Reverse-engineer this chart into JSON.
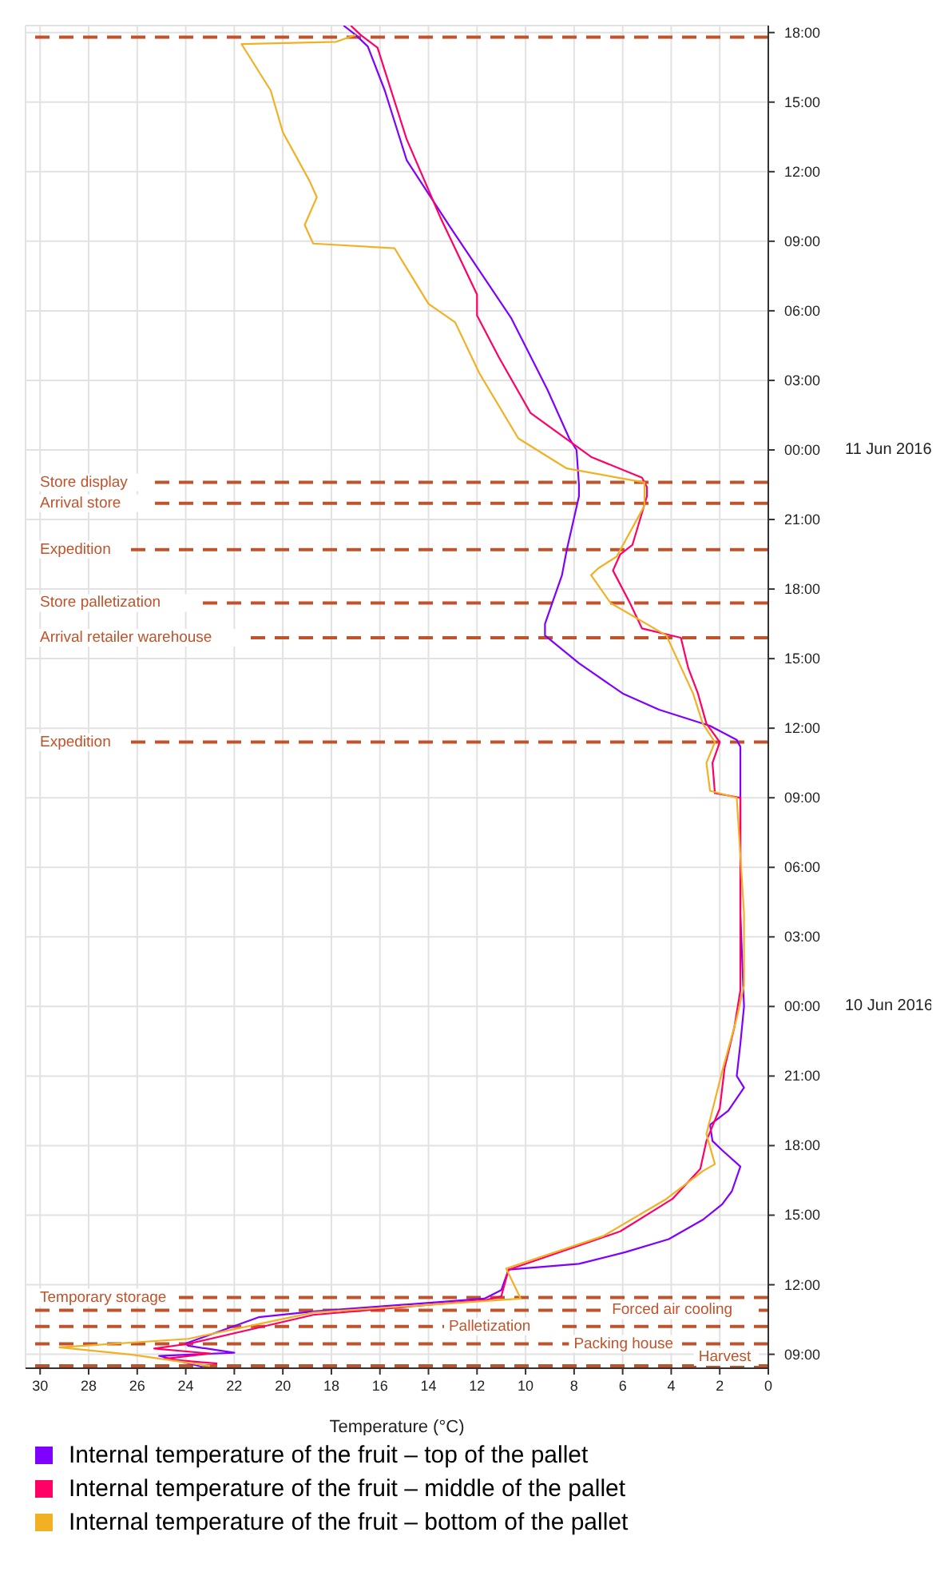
{
  "chart_data": {
    "type": "line",
    "orientation": "horizontal",
    "xlabel": "Temperature (°C)",
    "xlim": [
      30.6,
      0
    ],
    "xticks": [
      0,
      2,
      4,
      6,
      8,
      10,
      12,
      14,
      16,
      18,
      20,
      22,
      24,
      26,
      28,
      30
    ],
    "ylim": [
      "2016-06-09T08:24",
      "2016-06-11T18:18"
    ],
    "yticks": [
      {
        "value": "2016-06-09T09:00",
        "label": "09:00"
      },
      {
        "value": "2016-06-09T12:00",
        "label": "12:00"
      },
      {
        "value": "2016-06-09T15:00",
        "label": "15:00"
      },
      {
        "value": "2016-06-09T18:00",
        "label": "18:00"
      },
      {
        "value": "2016-06-09T21:00",
        "label": "21:00"
      },
      {
        "value": "2016-06-10T00:00",
        "label": "00:00"
      },
      {
        "value": "2016-06-10T03:00",
        "label": "03:00"
      },
      {
        "value": "2016-06-10T06:00",
        "label": "06:00"
      },
      {
        "value": "2016-06-10T09:00",
        "label": "09:00"
      },
      {
        "value": "2016-06-10T12:00",
        "label": "12:00"
      },
      {
        "value": "2016-06-10T15:00",
        "label": "15:00"
      },
      {
        "value": "2016-06-10T18:00",
        "label": "18:00"
      },
      {
        "value": "2016-06-10T21:00",
        "label": "21:00"
      },
      {
        "value": "2016-06-11T00:00",
        "label": "00:00"
      },
      {
        "value": "2016-06-11T03:00",
        "label": "03:00"
      },
      {
        "value": "2016-06-11T06:00",
        "label": "06:00"
      },
      {
        "value": "2016-06-11T09:00",
        "label": "09:00"
      },
      {
        "value": "2016-06-11T12:00",
        "label": "12:00"
      },
      {
        "value": "2016-06-11T15:00",
        "label": "15:00"
      },
      {
        "value": "2016-06-11T18:00",
        "label": "18:00"
      }
    ],
    "grid": true,
    "legend": "bottom",
    "series": [
      {
        "name": "Internal temperature of the fruit – top of the pallet",
        "color": "#8000ff",
        "x": [
          "2016-06-09T08:27",
          "2016-06-09T08:56",
          "2016-06-09T09:04",
          "2016-06-09T09:22",
          "2016-06-09T09:28",
          "2016-06-09T10:36",
          "2016-06-09T10:51",
          "2016-06-09T11:24",
          "2016-06-09T11:46",
          "2016-06-09T12:39",
          "2016-06-09T12:54",
          "2016-06-09T13:24",
          "2016-06-09T13:58",
          "2016-06-09T14:48",
          "2016-06-09T15:28",
          "2016-06-09T16:02",
          "2016-06-09T17:06",
          "2016-06-09T17:48",
          "2016-06-09T18:12",
          "2016-06-09T18:54",
          "2016-06-09T19:30",
          "2016-06-09T20:30",
          "2016-06-09T21:00",
          "2016-06-09T22:24",
          "2016-06-10T00:00",
          "2016-06-10T04:00",
          "2016-06-10T09:30",
          "2016-06-10T11:12",
          "2016-06-10T11:30",
          "2016-06-10T12:06",
          "2016-06-10T12:48",
          "2016-06-10T13:30",
          "2016-06-10T14:48",
          "2016-06-10T16:00",
          "2016-06-10T16:30",
          "2016-06-10T18:36",
          "2016-06-10T19:42",
          "2016-06-10T22:00",
          "2016-06-10T22:30",
          "2016-06-11T00:00",
          "2016-06-11T00:30",
          "2016-06-11T02:36",
          "2016-06-11T05:42",
          "2016-06-11T09:36",
          "2016-06-11T12:30",
          "2016-06-11T15:30",
          "2016-06-11T17:24",
          "2016-06-11T17:54",
          "2016-06-11T18:18"
        ],
        "values": [
          23.3,
          25.1,
          22.0,
          23.9,
          24.0,
          21.0,
          18.7,
          11.7,
          11.0,
          10.7,
          7.8,
          5.9,
          4.1,
          2.7,
          1.9,
          1.5,
          1.15,
          1.9,
          2.3,
          2.4,
          1.65,
          1.0,
          1.3,
          1.15,
          1.0,
          1.15,
          1.15,
          1.15,
          1.3,
          2.4,
          4.5,
          6.0,
          7.8,
          9.2,
          9.2,
          8.5,
          8.3,
          7.8,
          7.8,
          7.9,
          8.2,
          9.1,
          10.6,
          13.1,
          14.9,
          15.8,
          16.5,
          17.0,
          17.5
        ]
      },
      {
        "name": "Internal temperature of the fruit – middle of the pallet",
        "color": "#ff0066",
        "x": [
          "2016-06-09T08:36",
          "2016-06-09T08:48",
          "2016-06-09T09:02",
          "2016-06-09T09:15",
          "2016-06-09T09:27",
          "2016-06-09T10:42",
          "2016-06-09T11:21",
          "2016-06-09T11:30",
          "2016-06-09T12:39",
          "2016-06-09T14:18",
          "2016-06-09T15:42",
          "2016-06-09T17:00",
          "2016-06-09T18:12",
          "2016-06-09T19:36",
          "2016-06-09T21:21",
          "2016-06-09T23:06",
          "2016-06-10T00:42",
          "2016-06-10T04:00",
          "2016-06-10T09:00",
          "2016-06-10T09:12",
          "2016-06-10T10:30",
          "2016-06-10T11:24",
          "2016-06-10T12:12",
          "2016-06-10T13:30",
          "2016-06-10T14:36",
          "2016-06-10T15:54",
          "2016-06-10T16:18",
          "2016-06-10T17:24",
          "2016-06-10T18:48",
          "2016-06-10T19:30",
          "2016-06-10T19:54",
          "2016-06-10T22:00",
          "2016-06-10T22:24",
          "2016-06-10T22:48",
          "2016-06-10T23:42",
          "2016-06-11T01:36",
          "2016-06-11T04:00",
          "2016-06-11T05:48",
          "2016-06-11T06:42",
          "2016-06-11T10:00",
          "2016-06-11T13:24",
          "2016-06-11T17:21",
          "2016-06-11T17:54",
          "2016-06-11T18:18"
        ],
        "values": [
          22.7,
          24.9,
          23.0,
          25.3,
          23.9,
          18.75,
          11.6,
          11.0,
          10.7,
          6.1,
          3.95,
          2.8,
          2.55,
          2.0,
          1.8,
          1.4,
          1.15,
          1.15,
          1.15,
          2.2,
          2.3,
          2.0,
          2.55,
          2.9,
          3.3,
          3.6,
          5.2,
          5.7,
          6.4,
          6.1,
          5.6,
          5.0,
          5.0,
          5.2,
          7.3,
          9.8,
          11.1,
          12.0,
          12.0,
          13.5,
          14.9,
          16.1,
          16.8,
          17.2
        ]
      },
      {
        "name": "Internal temperature of the fruit – bottom of the pallet",
        "color": "#f2b124",
        "x": [
          "2016-06-09T08:30",
          "2016-06-09T08:59",
          "2016-06-09T09:18",
          "2016-06-09T09:40",
          "2016-06-09T10:48",
          "2016-06-09T11:24",
          "2016-06-09T12:42",
          "2016-06-09T14:06",
          "2016-06-09T15:42",
          "2016-06-09T16:54",
          "2016-06-09T17:12",
          "2016-06-09T18:30",
          "2016-06-09T21:12",
          "2016-06-09T23:30",
          "2016-06-10T00:54",
          "2016-06-10T04:00",
          "2016-06-10T09:00",
          "2016-06-10T09:18",
          "2016-06-10T10:30",
          "2016-06-10T11:24",
          "2016-06-10T12:12",
          "2016-06-10T13:30",
          "2016-06-10T16:00",
          "2016-06-10T17:24",
          "2016-06-10T18:36",
          "2016-06-10T18:54",
          "2016-06-10T19:24",
          "2016-06-10T21:36",
          "2016-06-10T22:36",
          "2016-06-10T23:12",
          "2016-06-11T00:30",
          "2016-06-11T03:18",
          "2016-06-11T05:30",
          "2016-06-11T06:18",
          "2016-06-11T08:42",
          "2016-06-11T08:54",
          "2016-06-11T09:42",
          "2016-06-11T10:54",
          "2016-06-11T11:36",
          "2016-06-11T13:42",
          "2016-06-11T15:30",
          "2016-06-11T17:30",
          "2016-06-11T17:36",
          "2016-06-11T17:54"
        ],
        "values": [
          23.0,
          26.2,
          29.2,
          23.9,
          18.75,
          10.2,
          10.8,
          6.8,
          4.2,
          2.7,
          2.2,
          2.55,
          1.9,
          1.3,
          1.0,
          1.0,
          1.3,
          2.4,
          2.55,
          2.2,
          2.7,
          3.1,
          4.2,
          6.5,
          7.3,
          7.0,
          6.25,
          5.1,
          5.1,
          8.3,
          10.3,
          11.9,
          12.9,
          14.0,
          15.4,
          18.75,
          19.1,
          18.6,
          18.9,
          20.0,
          20.5,
          21.7,
          17.8,
          17.0
        ]
      }
    ],
    "ref_lines": [
      {
        "axis": "y",
        "value": "2016-06-09T08:30",
        "label": "Harvest",
        "color": "#c0532b",
        "line_style": "dashed"
      },
      {
        "axis": "y",
        "value": "2016-06-09T09:27",
        "label": "Packing house",
        "color": "#c0532b",
        "line_style": "dashed"
      },
      {
        "axis": "y",
        "value": "2016-06-09T10:12",
        "label": "Palletization",
        "color": "#c0532b",
        "line_style": "dashed"
      },
      {
        "axis": "y",
        "value": "2016-06-09T10:54",
        "label": "Forced air cooling",
        "color": "#c0532b",
        "line_style": "dashed"
      },
      {
        "axis": "y",
        "value": "2016-06-09T11:27",
        "label": "Temporary storage",
        "color": "#c0532b",
        "line_style": "dashed"
      },
      {
        "axis": "y",
        "value": "2016-06-10T11:24",
        "label": "Expedition",
        "color": "#c0532b",
        "line_style": "dashed"
      },
      {
        "axis": "y",
        "value": "2016-06-10T15:54",
        "label": "Arrival retailer warehouse",
        "color": "#c0532b",
        "line_style": "dashed"
      },
      {
        "axis": "y",
        "value": "2016-06-10T17:24",
        "label": "Store palletization",
        "color": "#c0532b",
        "line_style": "dashed"
      },
      {
        "axis": "y",
        "value": "2016-06-10T19:42",
        "label": "Expedition",
        "color": "#c0532b",
        "line_style": "dashed"
      },
      {
        "axis": "y",
        "value": "2016-06-10T21:42",
        "label": "Arrival store",
        "color": "#c0532b",
        "line_style": "dashed"
      },
      {
        "axis": "y",
        "value": "2016-06-10T22:36",
        "label": "Store display",
        "color": "#c0532b",
        "line_style": "dashed"
      },
      {
        "axis": "y",
        "value": "2016-06-11T17:48",
        "label": null,
        "color": "#c0532b",
        "line_style": "dashed"
      }
    ],
    "y2lim": [
      "2016-06-09T08:24",
      "2016-06-11T18:18"
    ],
    "y2ticks": [
      {
        "value": "2016-06-10T00:00",
        "label": "10 Jun 2016"
      },
      {
        "value": "2016-06-11T00:00",
        "label": "11 Jun 2016"
      }
    ]
  }
}
